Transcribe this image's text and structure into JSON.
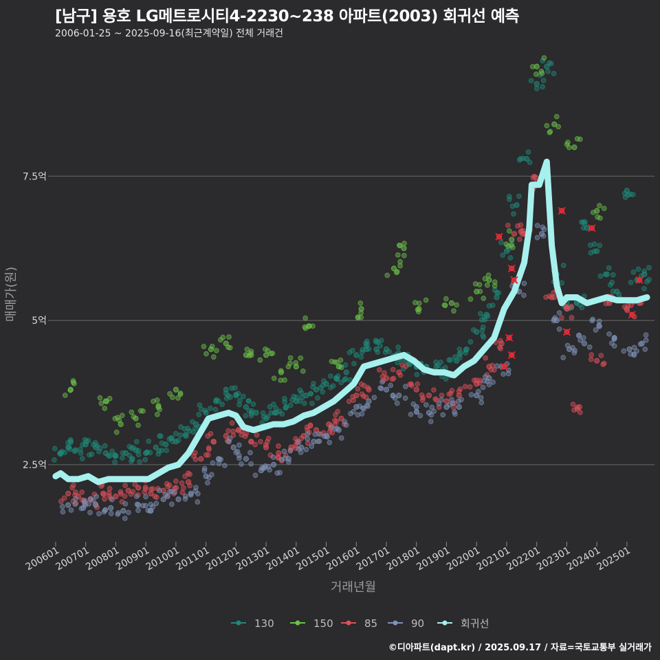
{
  "title": "[남구] 용호 LG메트로시티4-2230~238 아파트(2003) 회귀선 예측",
  "subtitle": "2006-01-25 ~ 2025-09-16(최근계약일) 전체 거래건",
  "caption": "©디아파트(dapt.kr) / 2025.09.17 / 자료=국토교통부 실거래가",
  "colors": {
    "background": "#2b2a2c",
    "grid": "#6a6a6a",
    "text": "#d8d8d8",
    "s130": "#1f8a7a",
    "s150": "#6cc24a",
    "s85": "#e0505a",
    "s90": "#7e93b8",
    "regression": "#a6f0ee",
    "marker_x": "#e8202a"
  },
  "chart_data": {
    "type": "scatter",
    "xlabel": "거래년월",
    "ylabel": "매매가(원)",
    "x_range": [
      "2005-10",
      "2025-12"
    ],
    "y_range_eok": [
      1.2,
      9.6
    ],
    "y_ticks": [
      {
        "value": 2.5,
        "label": "2.5억"
      },
      {
        "value": 5,
        "label": "5억"
      },
      {
        "value": 7.5,
        "label": "7.5억"
      }
    ],
    "x_ticks": [
      "200601",
      "200701",
      "200801",
      "200901",
      "201001",
      "201101",
      "201201",
      "201301",
      "201401",
      "201501",
      "201601",
      "201701",
      "201801",
      "201901",
      "202001",
      "202101",
      "202201",
      "202301",
      "202401",
      "202501"
    ],
    "legend": [
      {
        "key": "s130",
        "label": "130"
      },
      {
        "key": "s150",
        "label": "150"
      },
      {
        "key": "s85",
        "label": "85"
      },
      {
        "key": "s90",
        "label": "90"
      },
      {
        "key": "regression",
        "label": "회귀선"
      }
    ],
    "series_bands": [
      {
        "name": "130",
        "color_key": "s130",
        "points": [
          [
            "2006-03",
            2.7
          ],
          [
            "2006-06",
            2.8
          ],
          [
            "2006-09",
            2.75
          ],
          [
            "2007-01",
            2.85
          ],
          [
            "2007-05",
            2.8
          ],
          [
            "2007-09",
            2.7
          ],
          [
            "2008-01",
            2.65
          ],
          [
            "2008-05",
            2.7
          ],
          [
            "2008-09",
            2.75
          ],
          [
            "2009-01",
            2.7
          ],
          [
            "2009-05",
            2.8
          ],
          [
            "2009-09",
            2.85
          ],
          [
            "2010-01",
            2.9
          ],
          [
            "2010-05",
            3.0
          ],
          [
            "2010-09",
            3.2
          ],
          [
            "2011-01",
            3.4
          ],
          [
            "2011-05",
            3.6
          ],
          [
            "2011-09",
            3.8
          ],
          [
            "2012-01",
            3.7
          ],
          [
            "2012-05",
            3.5
          ],
          [
            "2012-09",
            3.4
          ],
          [
            "2013-01",
            3.3
          ],
          [
            "2013-05",
            3.4
          ],
          [
            "2013-09",
            3.5
          ],
          [
            "2014-01",
            3.6
          ],
          [
            "2014-05",
            3.7
          ],
          [
            "2014-09",
            3.8
          ],
          [
            "2015-01",
            3.9
          ],
          [
            "2015-05",
            4.0
          ],
          [
            "2015-09",
            4.1
          ],
          [
            "2016-01",
            4.4
          ],
          [
            "2016-05",
            4.5
          ],
          [
            "2016-09",
            4.5
          ],
          [
            "2017-01",
            4.5
          ],
          [
            "2017-05",
            4.4
          ],
          [
            "2017-09",
            4.3
          ],
          [
            "2018-01",
            4.2
          ],
          [
            "2018-05",
            4.2
          ],
          [
            "2018-09",
            4.2
          ],
          [
            "2019-01",
            4.1
          ],
          [
            "2019-05",
            4.3
          ],
          [
            "2019-09",
            4.5
          ],
          [
            "2020-01",
            4.8
          ],
          [
            "2020-05",
            5.1
          ],
          [
            "2020-09",
            5.4
          ],
          [
            "2021-01",
            6.2
          ],
          [
            "2021-05",
            7.0
          ],
          [
            "2021-09",
            7.8
          ],
          [
            "2022-01",
            9.1
          ],
          [
            "2022-05",
            9.4
          ],
          [
            "2022-09",
            5.8
          ],
          [
            "2023-01",
            5.3
          ],
          [
            "2023-05",
            5.3
          ],
          [
            "2023-09",
            6.6
          ],
          [
            "2024-01",
            6.2
          ],
          [
            "2024-05",
            5.8
          ],
          [
            "2024-09",
            5.5
          ],
          [
            "2025-01",
            7.25
          ],
          [
            "2025-05",
            5.7
          ],
          [
            "2025-08",
            5.8
          ]
        ]
      },
      {
        "name": "150",
        "color_key": "s150",
        "points": [
          [
            "2006-07",
            3.8
          ],
          [
            "2007-09",
            3.6
          ],
          [
            "2008-03",
            3.2
          ],
          [
            "2008-09",
            3.3
          ],
          [
            "2009-06",
            3.5
          ],
          [
            "2010-01",
            3.8
          ],
          [
            "2011-03",
            4.5
          ],
          [
            "2011-09",
            4.6
          ],
          [
            "2012-05",
            4.4
          ],
          [
            "2013-01",
            4.4
          ],
          [
            "2013-07",
            4.1
          ],
          [
            "2014-01",
            4.2
          ],
          [
            "2014-06",
            4.9
          ],
          [
            "2015-06",
            4.2
          ],
          [
            "2016-03",
            5.2
          ],
          [
            "2017-04",
            5.9
          ],
          [
            "2017-08",
            6.25
          ],
          [
            "2018-02",
            5.2
          ],
          [
            "2019-03",
            5.3
          ],
          [
            "2020-01",
            5.5
          ],
          [
            "2020-06",
            5.7
          ],
          [
            "2021-03",
            6.4
          ],
          [
            "2022-01",
            9.4
          ],
          [
            "2022-08",
            8.4
          ],
          [
            "2023-04",
            8.0
          ],
          [
            "2024-01",
            6.9
          ]
        ]
      },
      {
        "name": "85",
        "color_key": "s85",
        "points": [
          [
            "2006-06",
            2.0
          ],
          [
            "2006-10",
            1.95
          ],
          [
            "2007-03",
            1.9
          ],
          [
            "2007-08",
            2.0
          ],
          [
            "2008-01",
            1.95
          ],
          [
            "2008-06",
            2.05
          ],
          [
            "2008-10",
            2.1
          ],
          [
            "2009-03",
            2.0
          ],
          [
            "2009-08",
            2.05
          ],
          [
            "2010-01",
            2.1
          ],
          [
            "2010-06",
            2.2
          ],
          [
            "2010-11",
            2.6
          ],
          [
            "2011-04",
            2.9
          ],
          [
            "2011-09",
            3.0
          ],
          [
            "2012-02",
            3.1
          ],
          [
            "2012-07",
            2.9
          ],
          [
            "2013-01",
            2.8
          ],
          [
            "2013-06",
            2.7
          ],
          [
            "2013-11",
            2.8
          ],
          [
            "2014-04",
            3.0
          ],
          [
            "2014-09",
            3.1
          ],
          [
            "2015-02",
            3.2
          ],
          [
            "2015-07",
            3.3
          ],
          [
            "2016-01",
            3.7
          ],
          [
            "2016-06",
            3.8
          ],
          [
            "2017-01",
            4.0
          ],
          [
            "2017-06",
            4.1
          ],
          [
            "2018-01",
            3.8
          ],
          [
            "2018-06",
            3.7
          ],
          [
            "2019-01",
            3.6
          ],
          [
            "2019-06",
            3.7
          ],
          [
            "2020-01",
            3.9
          ],
          [
            "2020-06",
            4.2
          ],
          [
            "2020-11",
            4.6
          ],
          [
            "2021-04",
            6.5
          ],
          [
            "2021-08",
            6.5
          ],
          [
            "2022-01",
            7.4
          ],
          [
            "2022-07",
            5.4
          ],
          [
            "2023-01",
            5.2
          ],
          [
            "2023-06",
            3.5
          ],
          [
            "2024-01",
            4.3
          ],
          [
            "2024-06",
            5.3
          ],
          [
            "2025-01",
            5.2
          ],
          [
            "2025-06",
            5.3
          ]
        ]
      },
      {
        "name": "90",
        "color_key": "s90",
        "points": [
          [
            "2006-06",
            1.8
          ],
          [
            "2006-12",
            1.75
          ],
          [
            "2007-05",
            1.8
          ],
          [
            "2007-11",
            1.75
          ],
          [
            "2008-04",
            1.7
          ],
          [
            "2008-10",
            1.8
          ],
          [
            "2009-03",
            1.7
          ],
          [
            "2009-08",
            1.9
          ],
          [
            "2010-02",
            1.9
          ],
          [
            "2010-07",
            2.0
          ],
          [
            "2011-01",
            2.3
          ],
          [
            "2011-06",
            2.6
          ],
          [
            "2011-12",
            2.8
          ],
          [
            "2012-05",
            2.6
          ],
          [
            "2012-11",
            2.4
          ],
          [
            "2013-04",
            2.5
          ],
          [
            "2013-10",
            2.6
          ],
          [
            "2014-03",
            2.8
          ],
          [
            "2014-08",
            2.9
          ],
          [
            "2015-01",
            3.0
          ],
          [
            "2015-06",
            3.1
          ],
          [
            "2016-01",
            3.5
          ],
          [
            "2016-06",
            3.6
          ],
          [
            "2017-01",
            3.8
          ],
          [
            "2017-06",
            3.7
          ],
          [
            "2018-01",
            3.5
          ],
          [
            "2018-06",
            3.4
          ],
          [
            "2019-01",
            3.5
          ],
          [
            "2019-06",
            3.5
          ],
          [
            "2020-01",
            3.7
          ],
          [
            "2020-06",
            4.0
          ],
          [
            "2020-11",
            4.2
          ],
          [
            "2021-06",
            5.5
          ],
          [
            "2022-03",
            6.5
          ],
          [
            "2022-09",
            5.0
          ],
          [
            "2023-02",
            4.5
          ],
          [
            "2023-08",
            4.6
          ],
          [
            "2024-02",
            4.9
          ],
          [
            "2024-08",
            4.7
          ],
          [
            "2025-02",
            4.5
          ],
          [
            "2025-07",
            4.6
          ]
        ]
      }
    ],
    "regression": [
      [
        "2006-01",
        2.3
      ],
      [
        "2006-03",
        2.35
      ],
      [
        "2006-06",
        2.25
      ],
      [
        "2006-10",
        2.25
      ],
      [
        "2007-02",
        2.3
      ],
      [
        "2007-06",
        2.2
      ],
      [
        "2007-10",
        2.25
      ],
      [
        "2008-02",
        2.25
      ],
      [
        "2008-06",
        2.25
      ],
      [
        "2008-10",
        2.25
      ],
      [
        "2009-02",
        2.25
      ],
      [
        "2009-06",
        2.35
      ],
      [
        "2009-10",
        2.45
      ],
      [
        "2010-02",
        2.5
      ],
      [
        "2010-06",
        2.7
      ],
      [
        "2010-10",
        3.0
      ],
      [
        "2011-02",
        3.3
      ],
      [
        "2011-06",
        3.35
      ],
      [
        "2011-10",
        3.4
      ],
      [
        "2012-01",
        3.35
      ],
      [
        "2012-04",
        3.15
      ],
      [
        "2012-08",
        3.1
      ],
      [
        "2012-12",
        3.15
      ],
      [
        "2013-04",
        3.2
      ],
      [
        "2013-08",
        3.2
      ],
      [
        "2013-12",
        3.25
      ],
      [
        "2014-04",
        3.35
      ],
      [
        "2014-08",
        3.4
      ],
      [
        "2014-12",
        3.5
      ],
      [
        "2015-04",
        3.6
      ],
      [
        "2015-08",
        3.75
      ],
      [
        "2015-12",
        3.9
      ],
      [
        "2016-04",
        4.2
      ],
      [
        "2016-08",
        4.25
      ],
      [
        "2016-12",
        4.3
      ],
      [
        "2017-04",
        4.35
      ],
      [
        "2017-08",
        4.4
      ],
      [
        "2017-12",
        4.3
      ],
      [
        "2018-04",
        4.15
      ],
      [
        "2018-08",
        4.1
      ],
      [
        "2018-12",
        4.1
      ],
      [
        "2019-04",
        4.05
      ],
      [
        "2019-08",
        4.2
      ],
      [
        "2019-12",
        4.3
      ],
      [
        "2020-04",
        4.5
      ],
      [
        "2020-08",
        4.7
      ],
      [
        "2020-12",
        5.2
      ],
      [
        "2021-04",
        5.5
      ],
      [
        "2021-08",
        6.0
      ],
      [
        "2021-10",
        6.6
      ],
      [
        "2021-11",
        7.35
      ],
      [
        "2022-02",
        7.35
      ],
      [
        "2022-05",
        7.75
      ],
      [
        "2022-07",
        6.3
      ],
      [
        "2022-09",
        5.6
      ],
      [
        "2022-11",
        5.3
      ],
      [
        "2023-01",
        5.4
      ],
      [
        "2023-05",
        5.4
      ],
      [
        "2023-09",
        5.3
      ],
      [
        "2024-01",
        5.35
      ],
      [
        "2024-05",
        5.4
      ],
      [
        "2024-09",
        5.35
      ],
      [
        "2025-01",
        5.35
      ],
      [
        "2025-05",
        5.35
      ],
      [
        "2025-09",
        5.4
      ]
    ],
    "x_markers": [
      [
        "2020-10",
        6.45
      ],
      [
        "2021-03",
        5.9
      ],
      [
        "2021-04",
        5.7
      ],
      [
        "2021-02",
        4.7
      ],
      [
        "2021-03",
        4.4
      ],
      [
        "2020-12",
        4.2
      ],
      [
        "2022-11",
        6.9
      ],
      [
        "2023-01",
        4.8
      ],
      [
        "2023-11",
        6.6
      ],
      [
        "2025-03",
        5.1
      ],
      [
        "2025-06",
        5.7
      ]
    ]
  }
}
